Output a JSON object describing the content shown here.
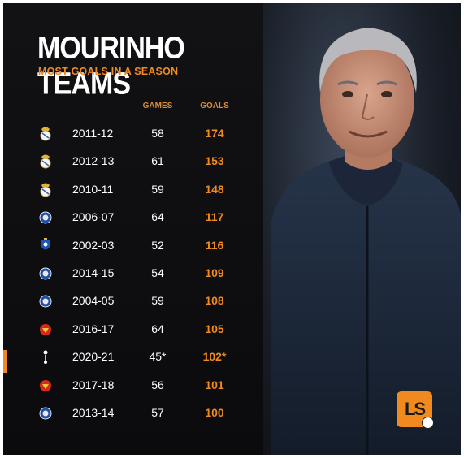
{
  "title": "MOURINHO TEAMS",
  "subtitle": "MOST GOALS IN A SEASON",
  "columns": {
    "games": "GAMES",
    "goals": "GOALS"
  },
  "colors": {
    "accent": "#f08a1e",
    "header_muted": "#d98a3a",
    "background": "#0d0d0f",
    "text": "#ffffff"
  },
  "rows": [
    {
      "crest": "real-madrid-crest-icon",
      "season": "2011-12",
      "games": "58",
      "goals": "174"
    },
    {
      "crest": "real-madrid-crest-icon",
      "season": "2012-13",
      "games": "61",
      "goals": "153"
    },
    {
      "crest": "real-madrid-crest-icon",
      "season": "2010-11",
      "games": "59",
      "goals": "148"
    },
    {
      "crest": "chelsea-crest-icon",
      "season": "2006-07",
      "games": "64",
      "goals": "117"
    },
    {
      "crest": "porto-crest-icon",
      "season": "2002-03",
      "games": "52",
      "goals": "116"
    },
    {
      "crest": "chelsea-crest-icon",
      "season": "2014-15",
      "games": "54",
      "goals": "109"
    },
    {
      "crest": "chelsea-crest-icon",
      "season": "2004-05",
      "games": "59",
      "goals": "108"
    },
    {
      "crest": "man-utd-crest-icon",
      "season": "2016-17",
      "games": "64",
      "goals": "105"
    },
    {
      "crest": "tottenham-crest-icon",
      "season": "2020-21",
      "games": "45*",
      "goals": "102*"
    },
    {
      "crest": "man-utd-crest-icon",
      "season": "2017-18",
      "games": "56",
      "goals": "101"
    },
    {
      "crest": "chelsea-crest-icon",
      "season": "2013-14",
      "games": "57",
      "goals": "100"
    }
  ],
  "logo": {
    "text": "LS"
  }
}
